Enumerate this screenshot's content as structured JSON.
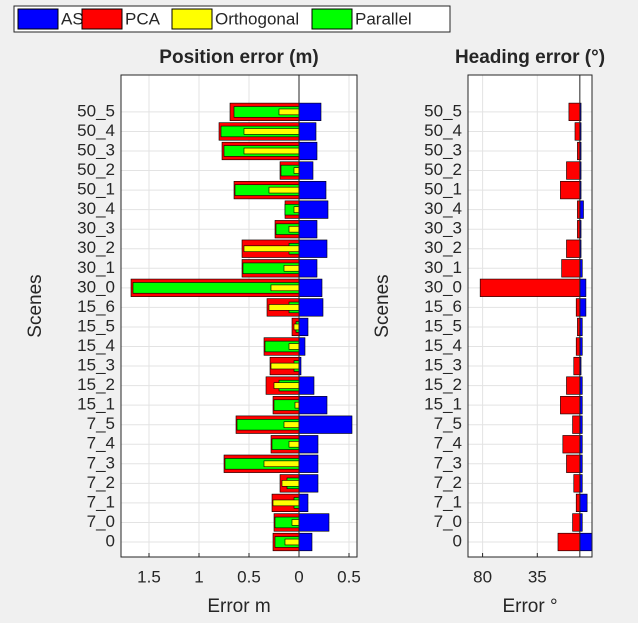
{
  "chart_data": [
    {
      "type": "hbar",
      "title": "Position error (m)",
      "xlabel": "Error m",
      "ylabel": "Scenes",
      "categories": [
        "0",
        "7_0",
        "7_1",
        "7_2",
        "7_3",
        "7_4",
        "7_5",
        "15_1",
        "15_2",
        "15_3",
        "15_4",
        "15_5",
        "15_6",
        "30_0",
        "30_1",
        "30_2",
        "30_3",
        "30_4",
        "50_1",
        "50_2",
        "50_3",
        "50_4",
        "50_5"
      ],
      "series": [
        {
          "name": "ASM",
          "color": "#0000ff",
          "values": [
            0.13,
            0.3,
            0.09,
            0.19,
            0.19,
            0.19,
            0.53,
            0.28,
            0.15,
            0.02,
            0.06,
            0.09,
            0.24,
            0.23,
            0.18,
            0.28,
            0.18,
            0.29,
            0.27,
            0.14,
            0.18,
            0.17,
            0.22
          ]
        },
        {
          "name": "PCA",
          "color": "#ff0000",
          "values": [
            -0.26,
            -0.25,
            -0.27,
            -0.19,
            -0.75,
            -0.28,
            -0.63,
            -0.26,
            -0.33,
            -0.29,
            -0.35,
            -0.07,
            -0.32,
            -1.68,
            -0.57,
            -0.57,
            -0.24,
            -0.14,
            -0.65,
            -0.19,
            -0.77,
            -0.8,
            -0.69
          ]
        },
        {
          "name": "Orthogonal",
          "color": "#ffff00",
          "values": [
            -0.14,
            -0.07,
            -0.26,
            -0.17,
            -0.35,
            -0.1,
            -0.15,
            -0.04,
            -0.25,
            -0.28,
            -0.1,
            -0.05,
            -0.3,
            -0.28,
            -0.15,
            -0.55,
            -0.1,
            -0.05,
            -0.3,
            -0.05,
            -0.55,
            -0.55,
            -0.2
          ]
        },
        {
          "name": "Parallel",
          "color": "#00ff00",
          "values": [
            -0.24,
            -0.24,
            -0.05,
            -0.12,
            -0.74,
            -0.27,
            -0.62,
            -0.25,
            -0.2,
            -0.05,
            -0.34,
            -0.03,
            -0.1,
            -1.66,
            -0.56,
            -0.1,
            -0.23,
            -0.14,
            -0.64,
            -0.18,
            -0.75,
            -0.78,
            -0.65
          ]
        }
      ],
      "xlim": [
        -1.78,
        0.58
      ],
      "xticks": [
        {
          "value": -1.5,
          "label": "1.5"
        },
        {
          "value": -1,
          "label": "1"
        },
        {
          "value": -0.5,
          "label": "0.5"
        },
        0,
        0.5
      ],
      "grid": true
    },
    {
      "type": "hbar",
      "title": "Heading error (°)",
      "xlabel": "Error °",
      "ylabel": "Scenes",
      "categories": [
        "0",
        "7_0",
        "7_1",
        "7_2",
        "7_3",
        "7_4",
        "7_5",
        "15_1",
        "15_2",
        "15_3",
        "15_4",
        "15_5",
        "15_6",
        "30_0",
        "30_1",
        "30_2",
        "30_3",
        "30_4",
        "50_1",
        "50_2",
        "50_3",
        "50_4",
        "50_5"
      ],
      "series": [
        {
          "color": "#0000ff",
          "values": [
            10,
            2,
            6,
            2,
            2,
            2,
            2,
            2,
            2,
            1,
            2,
            2,
            5,
            5,
            2,
            1,
            1,
            3,
            1,
            1,
            1,
            1,
            1
          ]
        },
        {
          "color": "#ff0000",
          "values": [
            -18,
            -6,
            -3,
            -5,
            -11,
            -14,
            -6,
            -16,
            -11,
            -5,
            -3,
            -2,
            -3,
            -82,
            -15,
            -11,
            -2,
            -2,
            -16,
            -11,
            -2,
            -4,
            -9
          ]
        }
      ],
      "xlim": [
        -92,
        10
      ],
      "xticks": [
        {
          "value": -80,
          "label": "80"
        },
        {
          "value": -35,
          "label": "35"
        }
      ],
      "grid": true
    }
  ]
}
